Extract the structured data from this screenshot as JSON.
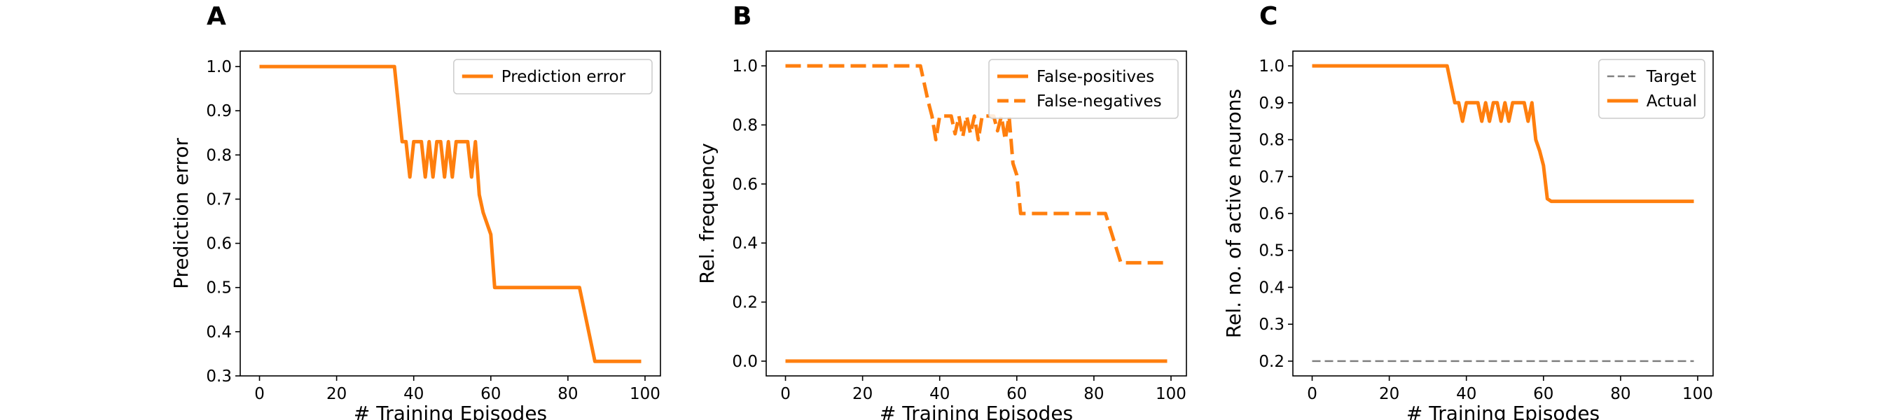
{
  "colors": {
    "orange": "#ff7f0e",
    "gray": "#808080",
    "axis": "#000000",
    "legend_border": "#cccccc"
  },
  "chart_data": [
    {
      "panel_label": "A",
      "type": "line",
      "xlabel": "# Training Episodes",
      "ylabel": "Prediction error",
      "xlim": [
        -5,
        104
      ],
      "ylim": [
        0.3,
        1.035
      ],
      "xticks": [
        0,
        20,
        40,
        60,
        80,
        100
      ],
      "yticks": [
        0.3,
        0.4,
        0.5,
        0.6,
        0.7,
        0.8,
        0.9,
        1.0
      ],
      "ytick_labels": [
        "0.3",
        "0.4",
        "0.5",
        "0.6",
        "0.7",
        "0.8",
        "0.9",
        "1.0"
      ],
      "grid": false,
      "legend": "top-right",
      "series": [
        {
          "name": "Prediction error",
          "color": "#ff7f0e",
          "style": "solid",
          "x": [
            0,
            35,
            37,
            38,
            39,
            40,
            41,
            42,
            43,
            44,
            45,
            46,
            47,
            48,
            49,
            50,
            51,
            52,
            53,
            54,
            55,
            56,
            57,
            58,
            60,
            61,
            62,
            83,
            87,
            99
          ],
          "y": [
            1.0,
            1.0,
            0.83,
            0.83,
            0.75,
            0.83,
            0.83,
            0.83,
            0.75,
            0.83,
            0.75,
            0.83,
            0.83,
            0.75,
            0.83,
            0.75,
            0.83,
            0.83,
            0.83,
            0.83,
            0.75,
            0.83,
            0.71,
            0.67,
            0.62,
            0.5,
            0.5,
            0.5,
            0.333,
            0.333
          ]
        }
      ]
    },
    {
      "panel_label": "B",
      "type": "line",
      "xlabel": "# Training Episodes",
      "ylabel": "Rel. frequency",
      "xlim": [
        -5,
        104
      ],
      "ylim": [
        -0.05,
        1.05
      ],
      "xticks": [
        0,
        20,
        40,
        60,
        80,
        100
      ],
      "yticks": [
        0.0,
        0.2,
        0.4,
        0.6,
        0.8,
        1.0
      ],
      "ytick_labels": [
        "0.0",
        "0.2",
        "0.4",
        "0.6",
        "0.8",
        "1.0"
      ],
      "grid": false,
      "legend": "top-right",
      "series": [
        {
          "name": "False-positives",
          "color": "#ff7f0e",
          "style": "solid",
          "x": [
            0,
            99
          ],
          "y": [
            0.0,
            0.0
          ]
        },
        {
          "name": "False-negatives",
          "color": "#ff7f0e",
          "style": "dashed",
          "x": [
            0,
            35,
            37,
            38,
            39,
            40,
            41,
            42,
            43,
            44,
            45,
            46,
            47,
            48,
            49,
            50,
            51,
            52,
            53,
            54,
            55,
            56,
            57,
            58,
            59,
            60,
            61,
            62,
            83,
            87,
            99
          ],
          "y": [
            1.0,
            1.0,
            0.88,
            0.83,
            0.75,
            0.83,
            0.83,
            0.83,
            0.83,
            0.77,
            0.83,
            0.76,
            0.83,
            0.77,
            0.83,
            0.75,
            0.83,
            0.83,
            0.83,
            0.83,
            0.78,
            0.83,
            0.75,
            0.83,
            0.67,
            0.63,
            0.5,
            0.5,
            0.5,
            0.333,
            0.333
          ]
        }
      ]
    },
    {
      "panel_label": "C",
      "type": "line",
      "xlabel": "# Training Episodes",
      "ylabel": "Rel. no. of active neurons",
      "xlim": [
        -5,
        104
      ],
      "ylim": [
        0.16,
        1.04
      ],
      "xticks": [
        0,
        20,
        40,
        60,
        80,
        100
      ],
      "yticks": [
        0.2,
        0.3,
        0.4,
        0.5,
        0.6,
        0.7,
        0.8,
        0.9,
        1.0
      ],
      "ytick_labels": [
        "0.2",
        "0.3",
        "0.4",
        "0.5",
        "0.6",
        "0.7",
        "0.8",
        "0.9",
        "1.0"
      ],
      "grid": false,
      "legend": "top-right",
      "series": [
        {
          "name": "Target",
          "color": "#808080",
          "style": "dashed-thin",
          "x": [
            0,
            99
          ],
          "y": [
            0.2,
            0.2
          ]
        },
        {
          "name": "Actual",
          "color": "#ff7f0e",
          "style": "solid",
          "x": [
            0,
            35,
            36,
            37,
            38,
            39,
            40,
            41,
            42,
            43,
            44,
            45,
            46,
            47,
            48,
            49,
            50,
            51,
            52,
            53,
            54,
            55,
            56,
            57,
            58,
            59,
            60,
            61,
            62,
            99
          ],
          "y": [
            1.0,
            1.0,
            0.95,
            0.9,
            0.9,
            0.85,
            0.9,
            0.9,
            0.9,
            0.9,
            0.85,
            0.9,
            0.85,
            0.9,
            0.9,
            0.85,
            0.9,
            0.85,
            0.9,
            0.9,
            0.9,
            0.9,
            0.85,
            0.9,
            0.8,
            0.77,
            0.73,
            0.64,
            0.633,
            0.633
          ]
        }
      ]
    }
  ]
}
